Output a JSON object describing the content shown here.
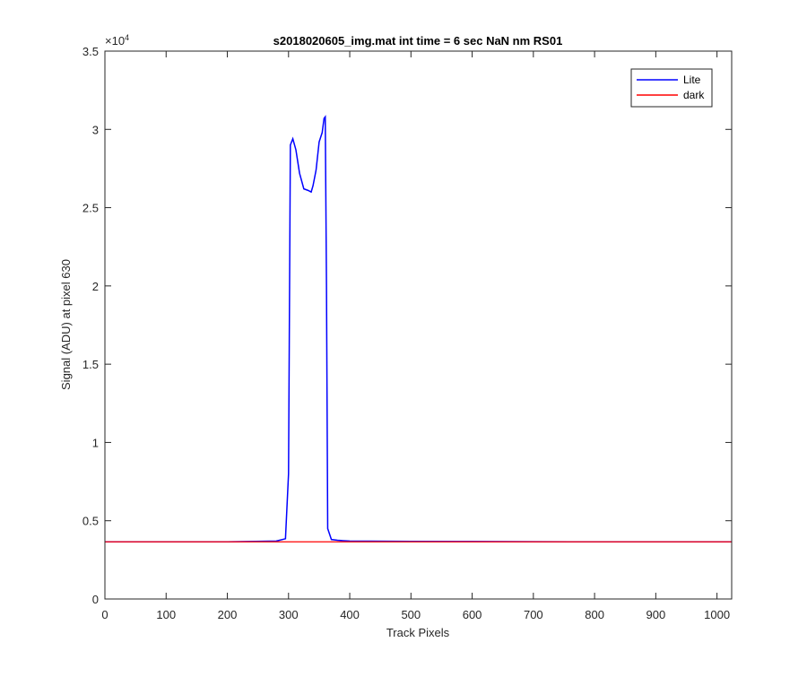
{
  "chart_data": {
    "type": "line",
    "title": "s2018020605_img.mat int time = 6 sec  NaN nm RS01",
    "xlabel": "Track Pixels",
    "ylabel": "Signal (ADU) at pixel 630",
    "xlim": [
      0,
      1024
    ],
    "ylim": [
      0,
      35000
    ],
    "y_exponent_label": "×10",
    "y_exponent_power": "4",
    "xticks": [
      0,
      100,
      200,
      300,
      400,
      500,
      600,
      700,
      800,
      900,
      1000
    ],
    "xtick_labels": [
      "0",
      "100",
      "200",
      "300",
      "400",
      "500",
      "600",
      "700",
      "800",
      "900",
      "1000"
    ],
    "yticks": [
      0,
      5000,
      10000,
      15000,
      20000,
      25000,
      30000,
      35000
    ],
    "ytick_labels": [
      "0",
      "0.5",
      "1",
      "1.5",
      "2",
      "2.5",
      "3",
      "3.5"
    ],
    "grid": false,
    "legend_position": "top-right",
    "series": [
      {
        "name": "Lite",
        "color": "#0000ff",
        "x": [
          0,
          100,
          200,
          280,
          295,
          300,
          303,
          307,
          312,
          318,
          325,
          332,
          337,
          340,
          345,
          350,
          355,
          358,
          360,
          362,
          364,
          370,
          380,
          400,
          500,
          600,
          700,
          800,
          900,
          1024
        ],
        "y": [
          3650,
          3650,
          3650,
          3700,
          3850,
          8000,
          29000,
          29400,
          28700,
          27200,
          26200,
          26100,
          26000,
          26400,
          27400,
          29200,
          29800,
          30700,
          30800,
          20000,
          4500,
          3800,
          3750,
          3700,
          3680,
          3670,
          3660,
          3650,
          3650,
          3650
        ]
      },
      {
        "name": "dark",
        "color": "#ff0000",
        "x": [
          0,
          200,
          400,
          600,
          800,
          1024
        ],
        "y": [
          3650,
          3650,
          3650,
          3650,
          3650,
          3650
        ]
      }
    ]
  }
}
